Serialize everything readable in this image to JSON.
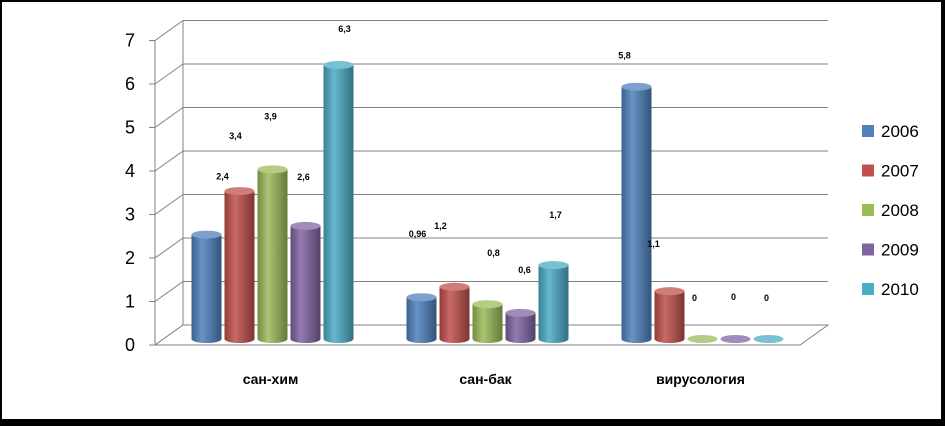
{
  "chart_data": {
    "type": "bar",
    "categories": [
      "сан-хим",
      "сан-бак",
      "вирусология"
    ],
    "series": [
      {
        "name": "2006",
        "values": [
          2.4,
          0.96,
          5.8
        ],
        "labels": [
          "2,4",
          "0,96",
          "5,8"
        ]
      },
      {
        "name": "2007",
        "values": [
          3.4,
          1.2,
          1.1
        ],
        "labels": [
          "3,4",
          "1,2",
          "1,1"
        ]
      },
      {
        "name": "2008",
        "values": [
          3.9,
          0.8,
          0
        ],
        "labels": [
          "3,9",
          "0,8",
          "0"
        ]
      },
      {
        "name": "2009",
        "values": [
          2.6,
          0.6,
          0
        ],
        "labels": [
          "2,6",
          "0,6",
          "0"
        ]
      },
      {
        "name": "2010",
        "values": [
          6.3,
          1.7,
          0
        ],
        "labels": [
          "6,3",
          "1,7",
          "0"
        ]
      }
    ],
    "colors": [
      "#4F81BD",
      "#C0504D",
      "#9BBB59",
      "#8064A2",
      "#4BACC6"
    ],
    "yticks": [
      "0",
      "1",
      "2",
      "3",
      "4",
      "5",
      "6",
      "7"
    ],
    "ylim": [
      0,
      7
    ],
    "grid": true,
    "legend_position": "right",
    "title": "",
    "xlabel": "",
    "ylabel": ""
  }
}
